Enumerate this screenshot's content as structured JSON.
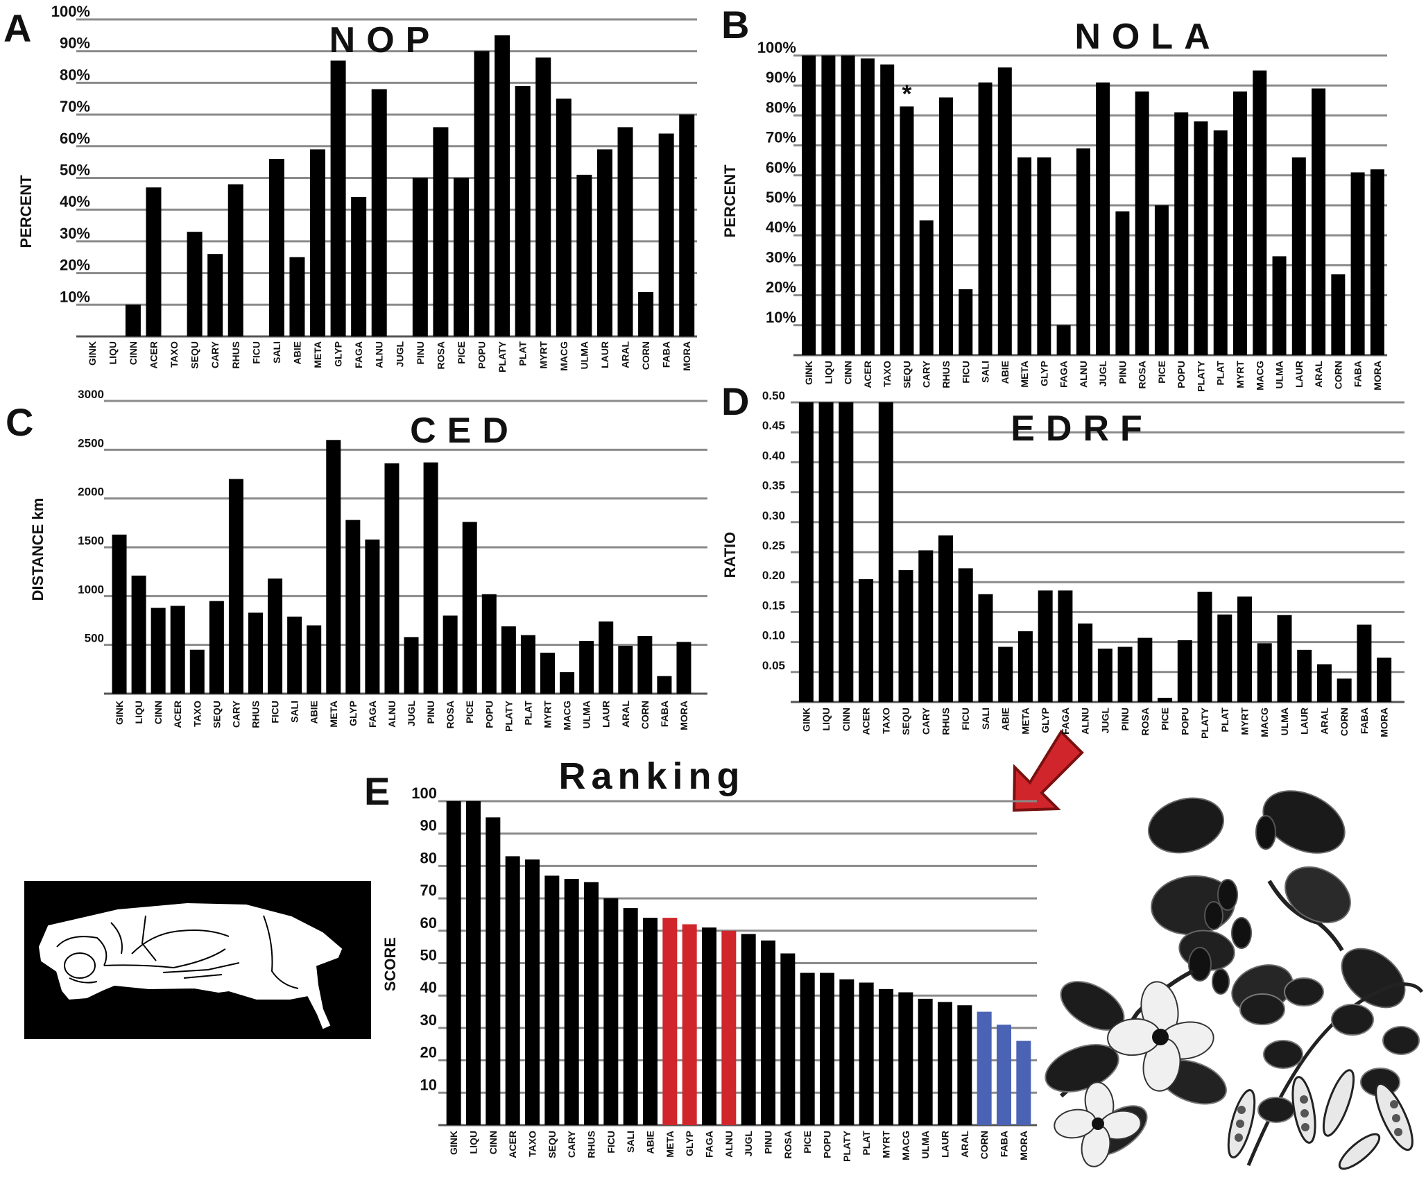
{
  "colors": {
    "bar": "#000000",
    "grid": "#8a8a8a",
    "red": "#d0262b",
    "blue": "#4a63b5"
  },
  "illustrations": [
    "skull-silhouette",
    "mulberry-branch",
    "dogwood-flower",
    "pea-vine"
  ],
  "chart_data": [
    {
      "id": "A",
      "panel_letter": "A",
      "type": "bar",
      "title": "NOP",
      "ylabel": "PERCENT",
      "xlabel": "",
      "ylim": [
        0,
        100
      ],
      "tick_labels": [
        "10%",
        "20%",
        "30%",
        "40%",
        "50%",
        "60%",
        "70%",
        "80%",
        "90%",
        "100%"
      ],
      "categories": [
        "GINK",
        "LIQU",
        "CINN",
        "ACER",
        "TAXO",
        "SEQU",
        "CARY",
        "RHUS",
        "FICU",
        "SALI",
        "ABIE",
        "META",
        "GLYP",
        "FAGA",
        "ALNU",
        "JUGL",
        "PINU",
        "ROSA",
        "PICE",
        "POPU",
        "PLATY",
        "PLAT",
        "MYRT",
        "MACG",
        "ULMA",
        "LAUR",
        "ARAL",
        "CORN",
        "FABA",
        "MORA"
      ],
      "values": [
        0,
        0,
        10,
        47,
        0,
        33,
        26,
        48,
        0,
        56,
        25,
        59,
        87,
        44,
        78,
        0,
        50,
        66,
        50,
        90,
        95,
        79,
        88,
        75,
        51,
        59,
        66,
        14,
        64,
        70
      ]
    },
    {
      "id": "B",
      "panel_letter": "B",
      "type": "bar",
      "title": "NOLA",
      "ylabel": "PERCENT",
      "xlabel": "",
      "ylim": [
        0,
        100
      ],
      "tick_labels": [
        "10%",
        "20%",
        "30%",
        "40%",
        "50%",
        "60%",
        "70%",
        "80%",
        "90%",
        "100%"
      ],
      "annotation": {
        "text": "*",
        "category": "SEQU"
      },
      "categories": [
        "GINK",
        "LIQU",
        "CINN",
        "ACER",
        "TAXO",
        "SEQU",
        "CARY",
        "RHUS",
        "FICU",
        "SALI",
        "ABIE",
        "META",
        "GLYP",
        "FAGA",
        "ALNU",
        "JUGL",
        "PINU",
        "ROSA",
        "PICE",
        "POPU",
        "PLATY",
        "PLAT",
        "MYRT",
        "MACG",
        "ULMA",
        "LAUR",
        "ARAL",
        "CORN",
        "FABA",
        "MORA"
      ],
      "values": [
        101,
        101,
        101,
        99,
        97,
        83,
        45,
        86,
        22,
        91,
        96,
        66,
        66,
        10,
        69,
        91,
        48,
        88,
        50,
        81,
        78,
        75,
        88,
        95,
        33,
        66,
        89,
        27,
        61,
        62
      ]
    },
    {
      "id": "C",
      "panel_letter": "C",
      "type": "bar",
      "title": "CED",
      "ylabel": "DISTANCE km",
      "xlabel": "",
      "ylim": [
        0,
        3000
      ],
      "tick_values": [
        500,
        1000,
        1500,
        2000,
        2500,
        3000
      ],
      "tick_labels": [
        "500",
        "1000",
        "1500",
        "2000",
        "2500",
        "3000"
      ],
      "categories": [
        "GINK",
        "LIQU",
        "CINN",
        "ACER",
        "TAXO",
        "SEQU",
        "CARY",
        "RHUS",
        "FICU",
        "SALI",
        "ABIE",
        "META",
        "GLYP",
        "FAGA",
        "ALNU",
        "JUGL",
        "PINU",
        "ROSA",
        "PICE",
        "POPU",
        "PLATY",
        "PLAT",
        "MYRT",
        "MACG",
        "ULMA",
        "LAUR",
        "ARAL",
        "CORN",
        "FABA",
        "MORA"
      ],
      "values": [
        1630,
        1210,
        880,
        900,
        450,
        950,
        2200,
        830,
        1180,
        790,
        700,
        2600,
        1780,
        1580,
        2360,
        580,
        2370,
        800,
        1760,
        1020,
        690,
        600,
        420,
        220,
        540,
        740,
        490,
        590,
        180,
        530
      ]
    },
    {
      "id": "D",
      "panel_letter": "D",
      "type": "bar",
      "title": "EDRF",
      "ylabel": "RATIO",
      "xlabel": "",
      "ylim": [
        0,
        0.5
      ],
      "tick_values": [
        0.05,
        0.1,
        0.15,
        0.2,
        0.25,
        0.3,
        0.35,
        0.4,
        0.45,
        0.5
      ],
      "tick_labels": [
        "0.05",
        "0.10",
        "0.15",
        "0.20",
        "0.25",
        "0.30",
        "0.35",
        "0.40",
        "0.45",
        "0.50"
      ],
      "categories": [
        "GINK",
        "LIQU",
        "CINN",
        "ACER",
        "TAXO",
        "SEQU",
        "CARY",
        "RHUS",
        "FICU",
        "SALI",
        "ABIE",
        "META",
        "GLYP",
        "FAGA",
        "ALNU",
        "JUGL",
        "PINU",
        "ROSA",
        "PICE",
        "POPU",
        "PLATY",
        "PLAT",
        "MYRT",
        "MACG",
        "ULMA",
        "LAUR",
        "ARAL",
        "CORN",
        "FABA",
        "MORA"
      ],
      "values": [
        0.5,
        0.5,
        0.5,
        0.205,
        0.5,
        0.22,
        0.253,
        0.278,
        0.223,
        0.18,
        0.092,
        0.118,
        0.186,
        0.186,
        0.131,
        0.089,
        0.092,
        0.107,
        0.007,
        0.103,
        0.184,
        0.146,
        0.176,
        0.098,
        0.145,
        0.087,
        0.063,
        0.039,
        0.129,
        0.074
      ]
    },
    {
      "id": "E",
      "panel_letter": "E",
      "type": "bar",
      "title": "Ranking",
      "ylabel": "SCORE",
      "xlabel": "",
      "ylim": [
        0,
        100
      ],
      "tick_labels": [
        "10",
        "20",
        "30",
        "40",
        "50",
        "60",
        "70",
        "80",
        "90",
        "100"
      ],
      "categories": [
        "GINK",
        "LIQU",
        "CINN",
        "ACER",
        "TAXO",
        "SEQU",
        "CARY",
        "RHUS",
        "FICU",
        "SALI",
        "ABIE",
        "META",
        "GLYP",
        "FAGA",
        "ALNU",
        "JUGL",
        "PINU",
        "ROSA",
        "PICE",
        "POPU",
        "PLATY",
        "PLAT",
        "MYRT",
        "MACG",
        "ULMA",
        "LAUR",
        "ARAL",
        "CORN",
        "FABA",
        "MORA"
      ],
      "values": [
        100,
        100,
        95,
        83,
        82,
        77,
        76,
        75,
        70,
        67,
        64,
        64,
        62,
        61,
        60,
        59,
        57,
        53,
        47,
        47,
        45,
        44,
        42,
        41,
        39,
        38,
        37,
        35,
        31,
        26
      ],
      "bar_colors": [
        "black",
        "black",
        "black",
        "black",
        "black",
        "black",
        "black",
        "black",
        "black",
        "black",
        "black",
        "red",
        "red",
        "black",
        "red",
        "black",
        "black",
        "black",
        "black",
        "black",
        "black",
        "black",
        "black",
        "black",
        "black",
        "black",
        "black",
        "blue",
        "blue",
        "blue"
      ]
    }
  ]
}
